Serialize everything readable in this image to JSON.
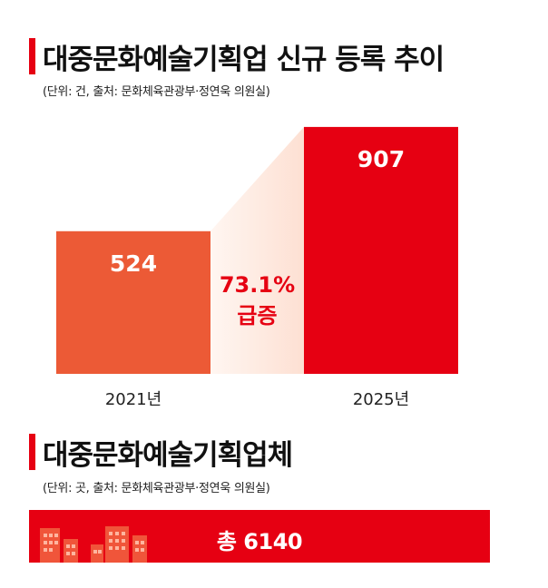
{
  "section1": {
    "title": "대중문화예술기획업 신규 등록 추이",
    "subtitle": "(단위: 건, 출처: 문화체육관광부·정연욱 의원실)"
  },
  "chart_data": {
    "type": "bar",
    "title": "대중문화예술기획업 신규 등록 추이",
    "categories": [
      "2021년",
      "2025년"
    ],
    "values": [
      524,
      907
    ],
    "value_labels": [
      "524",
      "907"
    ],
    "annotation": {
      "line1": "73.1%",
      "line2": "급증"
    },
    "colors": {
      "bar1": "#ec5a36",
      "bar2": "#e60012",
      "annotation": "#e60012",
      "connector": "#fde6dd"
    },
    "ylim": [
      0,
      1000
    ],
    "xlabel": "",
    "ylabel": ""
  },
  "section2": {
    "title": "대중문화예술기획업체",
    "subtitle": "(단위: 곳, 출처: 문화체육관광부·정연욱 의원실)",
    "total_label": "총 6140",
    "total_value": 6140,
    "icon": "buildings-icon"
  }
}
